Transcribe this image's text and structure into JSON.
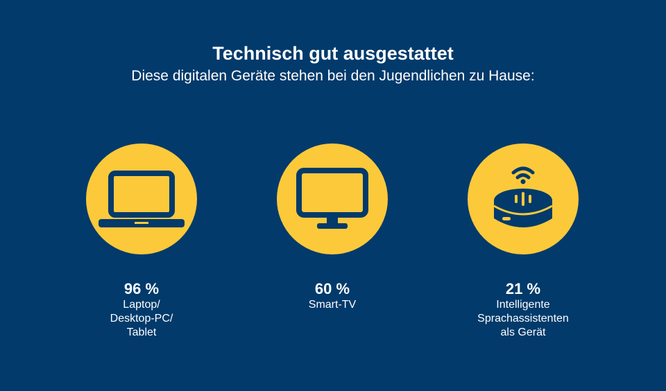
{
  "header": {
    "title": "Technisch gut ausgestattet",
    "subtitle": "Diese digitalen Geräte stehen bei den Jugendlichen zu Hause:"
  },
  "colors": {
    "background": "#013a6b",
    "accent": "#fcc93a"
  },
  "items": [
    {
      "icon": "laptop-icon",
      "percent": "96 %",
      "value": 96,
      "label_lines": [
        "Laptop/",
        "Desktop-PC/",
        "Tablet"
      ]
    },
    {
      "icon": "monitor-icon",
      "percent": "60 %",
      "value": 60,
      "label_lines": [
        "Smart-TV"
      ]
    },
    {
      "icon": "smart-speaker-icon",
      "percent": "21 %",
      "value": 21,
      "label_lines": [
        "Intelligente",
        "Sprachassistenten",
        "als Gerät"
      ]
    }
  ]
}
